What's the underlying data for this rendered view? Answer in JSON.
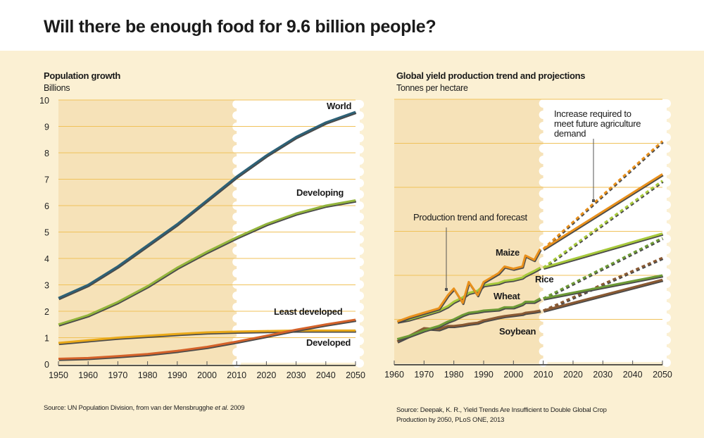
{
  "title": "Will there be enough food for 9.6 billion people?",
  "colors": {
    "background": "#fbf0d3",
    "historical_shade": "#f6e2b8",
    "projection": "#ffffff",
    "grid": "#f0c25a"
  },
  "chart_data": [
    {
      "type": "line",
      "title": "Population growth",
      "ylabel": "Billions",
      "xlim": [
        1950,
        2050
      ],
      "ylim": [
        0,
        10
      ],
      "x_ticks": [
        1950,
        1960,
        1970,
        1980,
        1990,
        2000,
        2010,
        2020,
        2030,
        2040,
        2050
      ],
      "y_ticks": [
        0,
        1,
        2,
        3,
        4,
        5,
        6,
        7,
        8,
        9,
        10
      ],
      "grid": true,
      "projection_from": 2010,
      "x": [
        1950,
        1960,
        1970,
        1980,
        1990,
        2000,
        2010,
        2020,
        2030,
        2040,
        2050
      ],
      "series": [
        {
          "name": "World",
          "color": "#2d6176",
          "values": [
            2.5,
            3.0,
            3.7,
            4.5,
            5.3,
            6.2,
            7.1,
            7.9,
            8.6,
            9.15,
            9.55
          ]
        },
        {
          "name": "Developing",
          "color": "#93b53c",
          "values": [
            1.5,
            1.85,
            2.35,
            2.95,
            3.65,
            4.25,
            4.8,
            5.3,
            5.7,
            6.0,
            6.2
          ]
        },
        {
          "name": "Least developed",
          "color": "#d4622a",
          "values": [
            0.2,
            0.23,
            0.3,
            0.38,
            0.5,
            0.65,
            0.85,
            1.07,
            1.3,
            1.5,
            1.68
          ]
        },
        {
          "name": "Developed",
          "color": "#e9a919",
          "values": [
            0.8,
            0.9,
            1.0,
            1.07,
            1.14,
            1.2,
            1.23,
            1.25,
            1.27,
            1.27,
            1.27
          ]
        }
      ],
      "source": "Source: UN Population Division, from van der Mensbrugghe",
      "source_italic": "et al.",
      "source_year": "2009"
    },
    {
      "type": "line",
      "title": "Global yield production trend and projections",
      "ylabel": "Tonnes per hectare",
      "xlim": [
        1960,
        2050
      ],
      "ylim": [
        0,
        12
      ],
      "x_ticks": [
        1960,
        1970,
        1980,
        1990,
        2000,
        2010,
        2020,
        2030,
        2040,
        2050
      ],
      "y_gridlines": [
        2,
        4,
        6,
        8,
        10,
        12
      ],
      "grid": true,
      "projection_from": 2010,
      "historical": {
        "x": [
          1961,
          1965,
          1970,
          1975,
          1978,
          1980,
          1983,
          1985,
          1988,
          1990,
          1995,
          1997,
          2000,
          2003,
          2004,
          2007,
          2009
        ],
        "series": [
          {
            "name": "Maize",
            "color": "#e8901c",
            "values": [
              1.9,
              2.1,
              2.3,
              2.5,
              3.1,
              3.4,
              2.75,
              3.7,
              3.1,
              3.7,
              4.1,
              4.4,
              4.3,
              4.4,
              4.9,
              4.7,
              5.2
            ]
          },
          {
            "name": "Rice",
            "color": "#a7c93b",
            "values": [
              1.9,
              2.0,
              2.2,
              2.4,
              2.6,
              2.8,
              3.0,
              3.2,
              3.3,
              3.55,
              3.65,
              3.75,
              3.8,
              3.9,
              4.0,
              4.2,
              4.35
            ]
          },
          {
            "name": "Wheat",
            "color": "#6e9b36",
            "values": [
              1.1,
              1.25,
              1.5,
              1.7,
              1.9,
              2.0,
              2.2,
              2.3,
              2.35,
              2.4,
              2.45,
              2.55,
              2.55,
              2.7,
              2.8,
              2.8,
              2.95
            ]
          },
          {
            "name": "Soybean",
            "color": "#8a5a33",
            "values": [
              1.0,
              1.25,
              1.6,
              1.55,
              1.7,
              1.7,
              1.75,
              1.8,
              1.85,
              1.95,
              2.1,
              2.15,
              2.2,
              2.25,
              2.3,
              2.35,
              2.4
            ]
          }
        ]
      },
      "projection_trend": {
        "x": [
          2010,
          2050
        ],
        "series": [
          {
            "name": "Maize",
            "color": "#e8901c",
            "values": [
              5.2,
              8.6
            ]
          },
          {
            "name": "Rice",
            "color": "#a7c93b",
            "values": [
              4.35,
              5.9
            ]
          },
          {
            "name": "Wheat",
            "color": "#6e9b36",
            "values": [
              2.95,
              4.0
            ]
          },
          {
            "name": "Soybean",
            "color": "#8a5a33",
            "values": [
              2.4,
              3.8
            ]
          }
        ]
      },
      "required_increase": {
        "x": [
          2010,
          2050
        ],
        "series": [
          {
            "name": "Maize",
            "color": "#e8901c",
            "values": [
              5.2,
              10.1
            ]
          },
          {
            "name": "Rice",
            "color": "#a7c93b",
            "values": [
              4.35,
              8.3
            ]
          },
          {
            "name": "Wheat",
            "color": "#6e9b36",
            "values": [
              2.95,
              5.7
            ]
          },
          {
            "name": "Soybean",
            "color": "#8a5a33",
            "values": [
              2.4,
              4.8
            ]
          }
        ]
      },
      "annotations": {
        "trend": "Production trend and forecast",
        "required": [
          "Increase required to",
          "meet future agriculture",
          "demand"
        ]
      },
      "source": [
        "Source: Deepak, K. R., Yield Trends Are Insufficient to Double Global Crop",
        "Production by 2050, PLoS ONE, 2013"
      ]
    }
  ]
}
